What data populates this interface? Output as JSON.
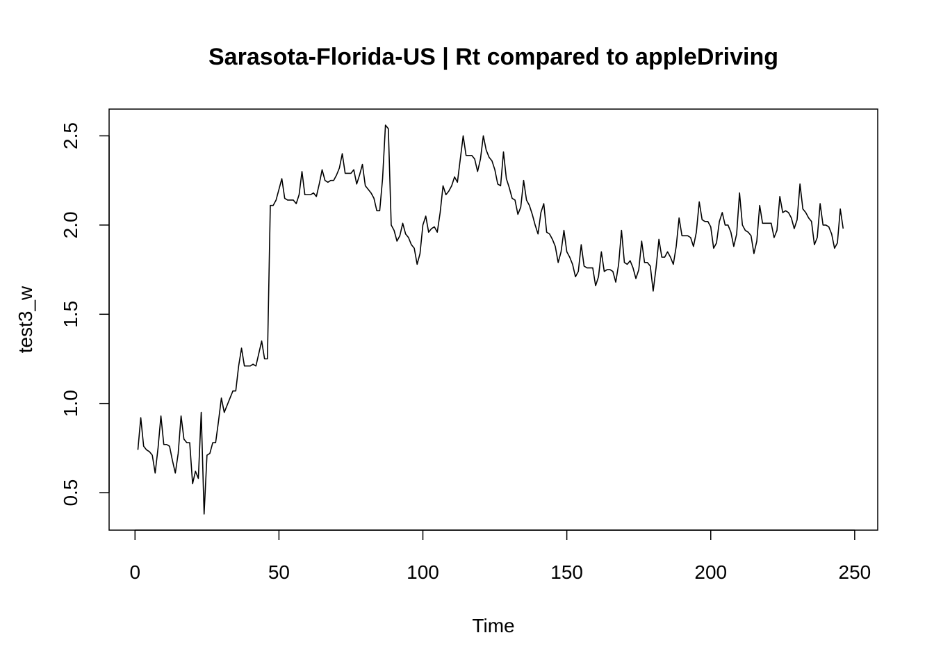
{
  "chart_data": {
    "type": "line",
    "title": "Sarasota-Florida-US | Rt compared to appleDriving",
    "xlabel": "Time",
    "ylabel": "test3_w",
    "xlim": [
      -9,
      258
    ],
    "ylim": [
      0.29,
      2.65
    ],
    "x_ticks": [
      0,
      50,
      100,
      150,
      200,
      250
    ],
    "y_ticks": [
      0.5,
      1.0,
      1.5,
      2.0,
      2.5
    ],
    "x_tick_labels": [
      "0",
      "50",
      "100",
      "150",
      "200",
      "250"
    ],
    "y_tick_labels": [
      "0.5",
      "1.0",
      "1.5",
      "2.0",
      "2.5"
    ],
    "grid": false,
    "legend": "none",
    "line_color": "#000000",
    "series": [
      {
        "x_start": 1,
        "x_step": 1,
        "values": [
          0.74,
          0.92,
          0.76,
          0.74,
          0.73,
          0.71,
          0.61,
          0.75,
          0.93,
          0.77,
          0.77,
          0.76,
          0.68,
          0.61,
          0.72,
          0.93,
          0.8,
          0.78,
          0.78,
          0.55,
          0.62,
          0.58,
          0.95,
          0.38,
          0.71,
          0.72,
          0.78,
          0.78,
          0.9,
          1.03,
          0.95,
          0.99,
          1.03,
          1.07,
          1.07,
          1.21,
          1.31,
          1.21,
          1.21,
          1.21,
          1.22,
          1.21,
          1.28,
          1.35,
          1.25,
          1.25,
          2.11,
          2.11,
          2.14,
          2.2,
          2.26,
          2.15,
          2.14,
          2.14,
          2.14,
          2.12,
          2.17,
          2.3,
          2.17,
          2.17,
          2.17,
          2.18,
          2.16,
          2.23,
          2.31,
          2.25,
          2.24,
          2.25,
          2.25,
          2.28,
          2.32,
          2.4,
          2.29,
          2.29,
          2.29,
          2.31,
          2.23,
          2.28,
          2.34,
          2.22,
          2.2,
          2.18,
          2.15,
          2.08,
          2.08,
          2.26,
          2.56,
          2.54,
          2.0,
          1.97,
          1.91,
          1.94,
          2.01,
          1.95,
          1.93,
          1.89,
          1.87,
          1.78,
          1.84,
          2.0,
          2.05,
          1.96,
          1.98,
          1.99,
          1.96,
          2.07,
          2.22,
          2.17,
          2.19,
          2.22,
          2.27,
          2.24,
          2.37,
          2.5,
          2.39,
          2.39,
          2.39,
          2.37,
          2.3,
          2.37,
          2.5,
          2.42,
          2.38,
          2.36,
          2.31,
          2.23,
          2.22,
          2.41,
          2.26,
          2.21,
          2.15,
          2.14,
          2.06,
          2.1,
          2.25,
          2.14,
          2.11,
          2.06,
          2.0,
          1.95,
          2.07,
          2.12,
          1.96,
          1.95,
          1.92,
          1.88,
          1.79,
          1.85,
          1.97,
          1.85,
          1.82,
          1.78,
          1.71,
          1.74,
          1.89,
          1.77,
          1.76,
          1.76,
          1.76,
          1.66,
          1.71,
          1.85,
          1.74,
          1.75,
          1.75,
          1.74,
          1.68,
          1.78,
          1.97,
          1.79,
          1.78,
          1.8,
          1.76,
          1.7,
          1.75,
          1.91,
          1.79,
          1.79,
          1.77,
          1.63,
          1.76,
          1.92,
          1.82,
          1.82,
          1.85,
          1.82,
          1.78,
          1.88,
          2.04,
          1.94,
          1.94,
          1.94,
          1.93,
          1.88,
          1.96,
          2.13,
          2.03,
          2.02,
          2.02,
          1.99,
          1.87,
          1.9,
          2.02,
          2.07,
          2.0,
          2.0,
          1.96,
          1.88,
          1.95,
          2.18,
          2.0,
          1.97,
          1.96,
          1.94,
          1.84,
          1.91,
          2.11,
          2.01,
          2.01,
          2.01,
          2.01,
          1.93,
          1.97,
          2.16,
          2.07,
          2.08,
          2.07,
          2.04,
          1.98,
          2.03,
          2.23,
          2.09,
          2.07,
          2.04,
          2.02,
          1.89,
          1.93,
          2.12,
          2.0,
          2.0,
          1.99,
          1.95,
          1.87,
          1.9,
          2.09,
          1.98
        ]
      }
    ]
  }
}
